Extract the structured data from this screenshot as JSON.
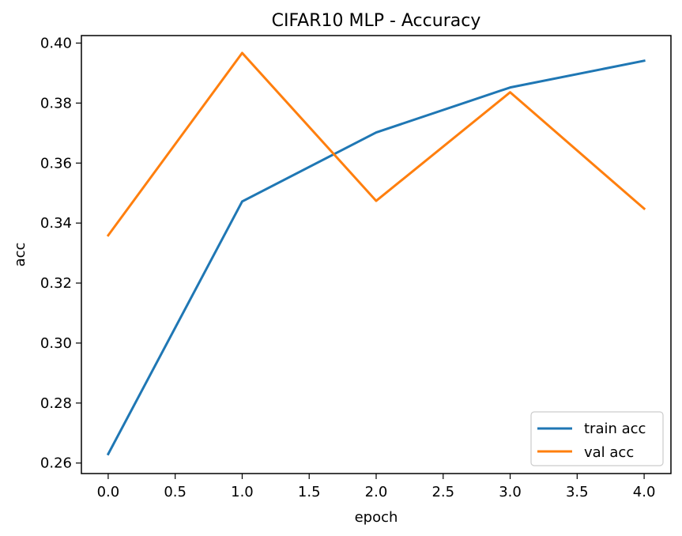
{
  "chart_data": {
    "type": "line",
    "title": "CIFAR10 MLP - Accuracy",
    "xlabel": "epoch",
    "ylabel": "acc",
    "x": [
      0,
      1,
      2,
      3,
      4
    ],
    "xlim": [
      -0.2,
      4.2
    ],
    "ylim": [
      0.2565,
      0.4025
    ],
    "xticks": [
      0.0,
      0.5,
      1.0,
      1.5,
      2.0,
      2.5,
      3.0,
      3.5,
      4.0
    ],
    "xtick_labels": [
      "0.0",
      "0.5",
      "1.0",
      "1.5",
      "2.0",
      "2.5",
      "3.0",
      "3.5",
      "4.0"
    ],
    "yticks": [
      0.26,
      0.28,
      0.3,
      0.32,
      0.34,
      0.36,
      0.38,
      0.4
    ],
    "ytick_labels": [
      "0.26",
      "0.28",
      "0.30",
      "0.32",
      "0.34",
      "0.36",
      "0.38",
      "0.40"
    ],
    "grid": false,
    "legend_position": "lower-right",
    "series": [
      {
        "name": "train acc",
        "color": "#1f77b4",
        "values": [
          0.263,
          0.3472,
          0.3702,
          0.3852,
          0.3941
        ]
      },
      {
        "name": "val acc",
        "color": "#ff7f0e",
        "values": [
          0.3359,
          0.3967,
          0.3474,
          0.3836,
          0.3448
        ]
      }
    ]
  }
}
